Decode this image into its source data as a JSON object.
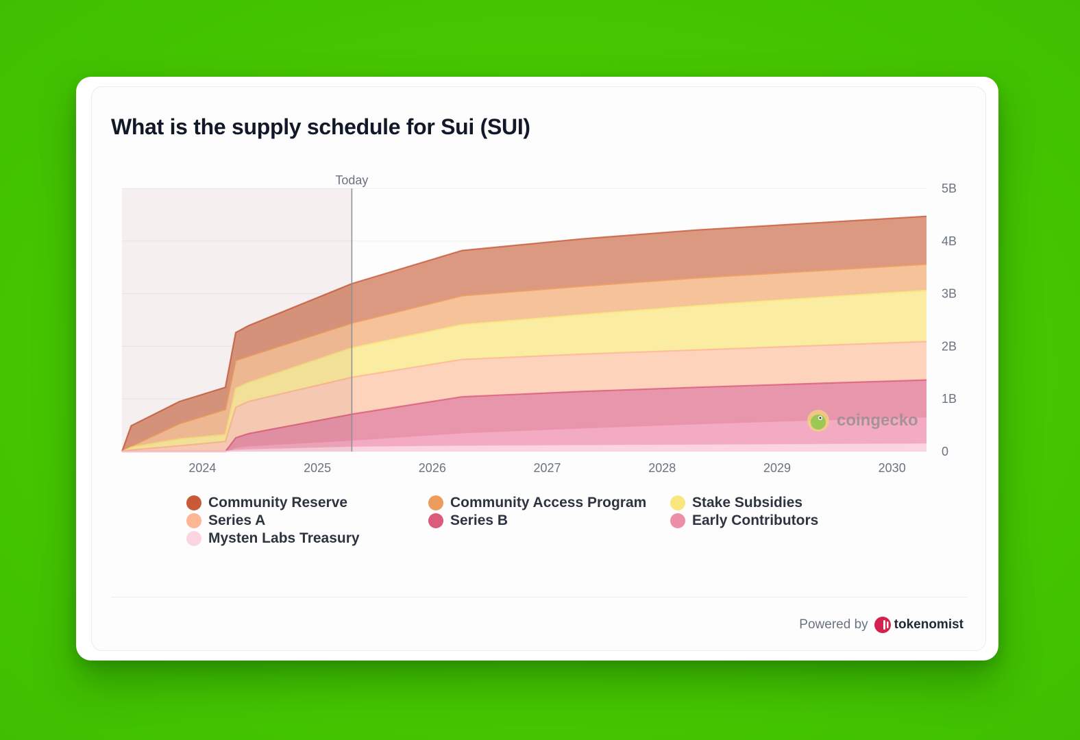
{
  "title": "What is the supply schedule for Sui (SUI)",
  "watermark": "coingecko",
  "footer": {
    "powered_by": "Powered by",
    "brand": "tokenomist"
  },
  "chart_data": {
    "type": "area",
    "stacked": true,
    "title": "What is the supply schedule for Sui (SUI)",
    "x_range": [
      2023.3,
      2030.3
    ],
    "x_ticks": [
      2024,
      2025,
      2026,
      2027,
      2028,
      2029,
      2030
    ],
    "y_range": [
      0,
      5000000000
    ],
    "y_ticks": [
      {
        "value": 0,
        "label": "0"
      },
      {
        "value": 1000000000,
        "label": "1B"
      },
      {
        "value": 2000000000,
        "label": "2B"
      },
      {
        "value": 3000000000,
        "label": "3B"
      },
      {
        "value": 4000000000,
        "label": "4B"
      },
      {
        "value": 5000000000,
        "label": "5B"
      }
    ],
    "y_axis_side": "right",
    "annotation": {
      "label": "Today",
      "x": 2025.3
    },
    "x": [
      2023.3,
      2023.38,
      2023.8,
      2024.2,
      2024.29,
      2024.4,
      2025.3,
      2026.26,
      2027.3,
      2028.3,
      2029.3,
      2030.3
    ],
    "series": [
      {
        "name": "Mysten Labs Treasury",
        "color": "#fad3df",
        "values": [
          0,
          0,
          0,
          0,
          0.02,
          0.03,
          0.08,
          0.1,
          0.11,
          0.12,
          0.13,
          0.14
        ]
      },
      {
        "name": "Early Contributors",
        "color": "#f2a6c0",
        "values": [
          0,
          0,
          0,
          0,
          0.08,
          0.11,
          0.22,
          0.36,
          0.45,
          0.53,
          0.6,
          0.66
        ]
      },
      {
        "name": "Series B",
        "color": "#e690a8",
        "values": [
          0,
          0,
          0,
          0,
          0.26,
          0.34,
          0.71,
          1.04,
          1.14,
          1.22,
          1.29,
          1.36
        ]
      },
      {
        "name": "Series A",
        "color": "#fdd1b8",
        "values": [
          0,
          0.03,
          0.11,
          0.19,
          0.84,
          0.95,
          1.41,
          1.75,
          1.85,
          1.93,
          2.01,
          2.09
        ]
      },
      {
        "name": "Stake Subsidies",
        "color": "#faeb9c",
        "values": [
          0,
          0.08,
          0.24,
          0.32,
          1.2,
          1.31,
          1.97,
          2.41,
          2.6,
          2.77,
          2.92,
          3.06
        ]
      },
      {
        "name": "Community Access Program",
        "color": "#f4bf93",
        "values": [
          0,
          0.1,
          0.53,
          0.8,
          1.73,
          1.81,
          2.44,
          2.96,
          3.14,
          3.3,
          3.43,
          3.56
        ]
      },
      {
        "name": "Community Reserve",
        "color": "#d9937a",
        "values": [
          0,
          0.49,
          0.95,
          1.22,
          2.26,
          2.39,
          3.19,
          3.82,
          4.04,
          4.21,
          4.34,
          4.47
        ]
      }
    ]
  },
  "legend": [
    {
      "label": "Community Reserve",
      "color": "#c85a38"
    },
    {
      "label": "Community Access Program",
      "color": "#ec9c5c"
    },
    {
      "label": "Stake Subsidies",
      "color": "#fae67e"
    },
    {
      "label": "Series A",
      "color": "#fcb694"
    },
    {
      "label": "Series B",
      "color": "#dc5a7a"
    },
    {
      "label": "Early Contributors",
      "color": "#ec90aa"
    },
    {
      "label": "Mysten Labs Treasury",
      "color": "#fbd6e0"
    }
  ]
}
